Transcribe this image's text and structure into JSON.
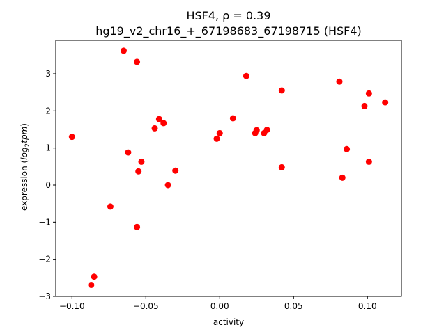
{
  "chart_data": {
    "type": "scatter",
    "title_line1": "HSF4, ρ = 0.39",
    "title_line2": "hg19_v2_chr16_+_67198683_67198715 (HSF4)",
    "xlabel": "activity",
    "ylabel_prefix": "expression (",
    "ylabel_math": "log",
    "ylabel_sub": "2",
    "ylabel_math2": "tpm",
    "ylabel_suffix": ")",
    "xlim": [
      -0.111,
      0.123
    ],
    "ylim": [
      -3.0,
      3.9
    ],
    "xticks": [
      -0.1,
      -0.05,
      0.0,
      0.05,
      0.1
    ],
    "xtick_labels": [
      "−0.10",
      "−0.05",
      "0.00",
      "0.05",
      "0.10"
    ],
    "yticks": [
      -3,
      -2,
      -1,
      0,
      1,
      2,
      3
    ],
    "ytick_labels": [
      "−3",
      "−2",
      "−1",
      "0",
      "1",
      "2",
      "3"
    ],
    "grid": false,
    "marker_color": "#ff0000",
    "series": [
      {
        "x": [
          -0.1,
          -0.087,
          -0.085,
          -0.074,
          -0.065,
          -0.062,
          -0.056,
          -0.056,
          -0.055,
          -0.053,
          -0.044,
          -0.041,
          -0.038,
          -0.035,
          -0.03,
          -0.002,
          0.0,
          0.009,
          0.018,
          0.024,
          0.025,
          0.03,
          0.032,
          0.042,
          0.042,
          0.081,
          0.083,
          0.086,
          0.098,
          0.101,
          0.101,
          0.112
        ],
        "y": [
          1.3,
          -2.69,
          -2.47,
          -0.58,
          3.62,
          0.88,
          3.32,
          -1.13,
          0.37,
          0.63,
          1.53,
          1.78,
          1.67,
          0.0,
          0.39,
          1.25,
          1.4,
          1.8,
          2.94,
          1.4,
          1.48,
          1.4,
          1.49,
          2.55,
          0.48,
          2.79,
          0.2,
          0.97,
          2.13,
          2.47,
          0.63,
          2.23
        ]
      }
    ]
  }
}
